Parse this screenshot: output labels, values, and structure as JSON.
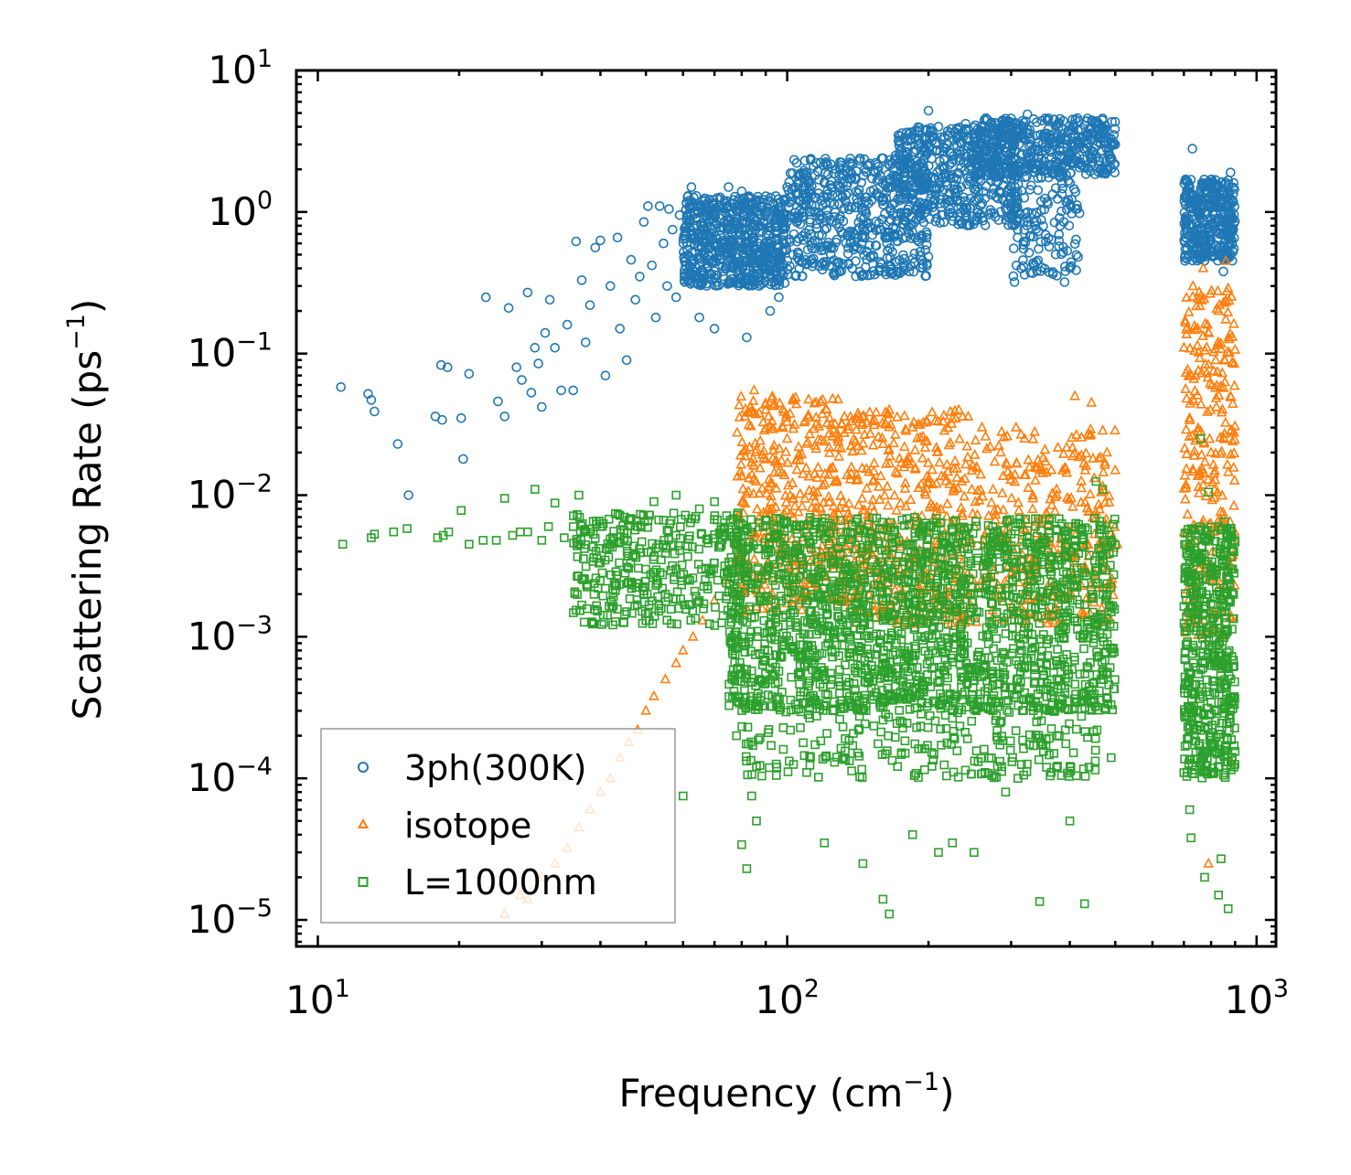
{
  "chart_data": {
    "type": "scatter",
    "title": "",
    "xlabel": {
      "base": "Frequency (cm",
      "exp": "−1",
      "tail": ")"
    },
    "ylabel": {
      "base": "Scattering Rate (ps",
      "exp": "−1",
      "tail": ")"
    },
    "xscale": "log",
    "yscale": "log",
    "xlim": [
      9,
      1100
    ],
    "ylim": [
      6.5e-06,
      10
    ],
    "xticks": [
      {
        "value": 10,
        "base": "10",
        "exp": "1"
      },
      {
        "value": 100,
        "base": "10",
        "exp": "2"
      },
      {
        "value": 1000,
        "base": "10",
        "exp": "3"
      }
    ],
    "yticks": [
      {
        "value": 1e-05,
        "base": "10",
        "exp": "−5"
      },
      {
        "value": 0.0001,
        "base": "10",
        "exp": "−4"
      },
      {
        "value": 0.001,
        "base": "10",
        "exp": "−3"
      },
      {
        "value": 0.01,
        "base": "10",
        "exp": "−2"
      },
      {
        "value": 0.1,
        "base": "10",
        "exp": "−1"
      },
      {
        "value": 1,
        "base": "10",
        "exp": "0"
      },
      {
        "value": 10,
        "base": "10",
        "exp": "1"
      }
    ],
    "legend": {
      "placement": "lower-left"
    },
    "series": [
      {
        "name": "3ph(300K)",
        "marker": "circle",
        "color": "#1f77b4",
        "points": [
          [
            11.2,
            0.058
          ],
          [
            12.8,
            0.052
          ],
          [
            13.0,
            0.047
          ],
          [
            13.2,
            0.039
          ],
          [
            14.8,
            0.023
          ],
          [
            15.6,
            0.01
          ],
          [
            17.8,
            0.036
          ],
          [
            18.4,
            0.034
          ],
          [
            18.3,
            0.083
          ],
          [
            18.9,
            0.08
          ],
          [
            20.2,
            0.035
          ],
          [
            20.4,
            0.018
          ],
          [
            21.0,
            0.072
          ],
          [
            22.8,
            0.25
          ],
          [
            24.2,
            0.046
          ],
          [
            25.0,
            0.036
          ],
          [
            25.5,
            0.21
          ],
          [
            26.5,
            0.08
          ],
          [
            27.2,
            0.065
          ],
          [
            28.0,
            0.27
          ],
          [
            28.5,
            0.053
          ],
          [
            29.0,
            0.11
          ],
          [
            29.5,
            0.085
          ],
          [
            30.0,
            0.042
          ],
          [
            30.5,
            0.14
          ],
          [
            31.2,
            0.24
          ],
          [
            32.0,
            0.11
          ],
          [
            33.0,
            0.055
          ],
          [
            34.0,
            0.16
          ],
          [
            35.0,
            0.055
          ],
          [
            35.5,
            0.62
          ],
          [
            36.5,
            0.33
          ],
          [
            37.2,
            0.12
          ],
          [
            38.0,
            0.22
          ],
          [
            39.0,
            0.56
          ],
          [
            40.0,
            0.63
          ],
          [
            41.0,
            0.07
          ],
          [
            42.0,
            0.3
          ],
          [
            43.5,
            0.66
          ],
          [
            44.0,
            0.15
          ],
          [
            45.5,
            0.09
          ],
          [
            46.5,
            0.46
          ],
          [
            47.5,
            0.24
          ],
          [
            48.5,
            0.35
          ],
          [
            49.5,
            0.85
          ],
          [
            50.5,
            1.1
          ],
          [
            51.5,
            0.42
          ],
          [
            52.5,
            0.18
          ],
          [
            53.5,
            1.1
          ],
          [
            54.5,
            0.6
          ],
          [
            55.5,
            0.3
          ],
          [
            56.0,
            1.05
          ],
          [
            57.0,
            0.75
          ],
          [
            58.0,
            0.25
          ],
          [
            59.0,
            0.95
          ],
          [
            60.5,
            0.45
          ],
          [
            61.5,
            1.3
          ],
          [
            62.5,
            1.5
          ],
          [
            64.0,
            1.3
          ],
          [
            65.0,
            0.18
          ],
          [
            66.0,
            1.2
          ],
          [
            68.0,
            0.85
          ],
          [
            70.0,
            0.15
          ],
          [
            72.0,
            0.9
          ],
          [
            75.0,
            1.5
          ],
          [
            78.0,
            0.5
          ],
          [
            80.0,
            1.4
          ],
          [
            82.0,
            0.13
          ],
          [
            85.0,
            0.65
          ],
          [
            88.0,
            1.1
          ],
          [
            92.0,
            0.2
          ],
          [
            96.0,
            0.25
          ],
          [
            100.0,
            1.5
          ],
          [
            105.0,
            0.9
          ],
          [
            110.0,
            1.9
          ],
          [
            115.0,
            1.0
          ],
          [
            120.0,
            1.6
          ],
          [
            128.0,
            1.3
          ],
          [
            135.0,
            1.1
          ],
          [
            140.0,
            1.7
          ],
          [
            150.0,
            2.2
          ],
          [
            160.0,
            2.4
          ],
          [
            170.0,
            2.5
          ],
          [
            180.0,
            2.9
          ],
          [
            190.0,
            3.2
          ],
          [
            200.0,
            5.2
          ],
          [
            210.0,
            4.0
          ],
          [
            220.0,
            3.5
          ],
          [
            230.0,
            3.9
          ],
          [
            240.0,
            4.2
          ],
          [
            250.0,
            3.6
          ],
          [
            265.0,
            4.6
          ],
          [
            280.0,
            4.1
          ],
          [
            295.0,
            4.4
          ],
          [
            305.0,
            0.32
          ],
          [
            310.0,
            3.8
          ],
          [
            325.0,
            4.9
          ],
          [
            340.0,
            4.3
          ],
          [
            355.0,
            2.9
          ],
          [
            370.0,
            3.1
          ],
          [
            390.0,
            0.32
          ],
          [
            405.0,
            3.8
          ],
          [
            430.0,
            4.1
          ],
          [
            460.0,
            3.4
          ],
          [
            490.0,
            3.1
          ],
          [
            500.0,
            3.0
          ],
          [
            720.0,
            1.5
          ],
          [
            730.0,
            2.8
          ],
          [
            740.0,
            0.5
          ],
          [
            760.0,
            1.0
          ],
          [
            790.0,
            0.6
          ],
          [
            820.0,
            1.2
          ],
          [
            850.0,
            0.38
          ],
          [
            880.0,
            1.9
          ],
          [
            895.0,
            0.55
          ]
        ],
        "clusters": [
          {
            "x": [
              60,
              100
            ],
            "y": [
              0.3,
              1.3
            ],
            "n": 650
          },
          {
            "x": [
              100,
              200
            ],
            "y": [
              0.35,
              2.4
            ],
            "n": 550
          },
          {
            "x": [
              170,
              310
            ],
            "y": [
              0.8,
              4.0
            ],
            "n": 450
          },
          {
            "x": [
              250,
              500
            ],
            "y": [
              1.8,
              4.6
            ],
            "n": 450
          },
          {
            "x": [
              300,
              420
            ],
            "y": [
              0.35,
              2.5
            ],
            "n": 150
          },
          {
            "x": [
              700,
              900
            ],
            "y": [
              0.45,
              1.7
            ],
            "n": 350
          }
        ]
      },
      {
        "name": "isotope",
        "marker": "triangle",
        "color": "#ff7f0e",
        "points": [
          [
            25.0,
            1.1e-05
          ],
          [
            27.0,
            1.5e-05
          ],
          [
            28.0,
            1.4e-05
          ],
          [
            30.0,
            2e-05
          ],
          [
            32.0,
            2.5e-05
          ],
          [
            34.0,
            3.2e-05
          ],
          [
            36.0,
            4.5e-05
          ],
          [
            38.0,
            6e-05
          ],
          [
            40.0,
            8e-05
          ],
          [
            42.0,
            0.0001
          ],
          [
            44.0,
            0.00014
          ],
          [
            46.0,
            0.00018
          ],
          [
            48.0,
            0.00022
          ],
          [
            50.0,
            0.0003
          ],
          [
            52.0,
            0.00038
          ],
          [
            55.0,
            0.0005
          ],
          [
            58.0,
            0.00065
          ],
          [
            60.0,
            0.0008
          ],
          [
            63.0,
            0.001
          ],
          [
            66.0,
            0.0013
          ],
          [
            70.0,
            0.0018
          ],
          [
            74.0,
            0.0025
          ],
          [
            78.0,
            0.0035
          ],
          [
            85.0,
            0.055
          ],
          [
            90.0,
            0.04
          ],
          [
            100.0,
            0.025
          ],
          [
            110.0,
            0.023
          ],
          [
            128.0,
            0.025
          ],
          [
            142.0,
            0.036
          ],
          [
            165.0,
            0.04
          ],
          [
            185.0,
            0.03
          ],
          [
            215.0,
            0.033
          ],
          [
            232.0,
            0.04
          ],
          [
            260.0,
            0.03
          ],
          [
            285.0,
            0.02
          ],
          [
            345.0,
            0.015
          ],
          [
            375.0,
            0.011
          ],
          [
            410.0,
            0.05
          ],
          [
            445.0,
            0.045
          ],
          [
            480.0,
            0.02
          ],
          [
            500.0,
            0.015
          ],
          [
            505.0,
            0.0045
          ],
          [
            720.0,
            0.035
          ],
          [
            770.0,
            0.4
          ],
          [
            800.0,
            0.02
          ],
          [
            830.0,
            0.2
          ],
          [
            860.0,
            0.45
          ],
          [
            880.0,
            0.05
          ],
          [
            885.0,
            0.00013
          ],
          [
            790.0,
            2.5e-05
          ]
        ],
        "clusters": [
          {
            "x": [
              78,
              130
            ],
            "y": [
              0.0015,
              0.05
            ],
            "n": 380
          },
          {
            "x": [
              130,
              250
            ],
            "y": [
              0.0012,
              0.04
            ],
            "n": 420
          },
          {
            "x": [
              250,
              500
            ],
            "y": [
              0.0012,
              0.03
            ],
            "n": 320
          },
          {
            "x": [
              700,
              900
            ],
            "y": [
              0.001,
              0.3
            ],
            "n": 260
          }
        ]
      },
      {
        "name": "L=1000nm",
        "marker": "square",
        "color": "#2ca02c",
        "points": [
          [
            11.3,
            0.0045
          ],
          [
            13.0,
            0.005
          ],
          [
            13.2,
            0.0053
          ],
          [
            14.5,
            0.0055
          ],
          [
            15.5,
            0.0058
          ],
          [
            18.0,
            0.005
          ],
          [
            18.5,
            0.0052
          ],
          [
            19.0,
            0.0055
          ],
          [
            20.2,
            0.0078
          ],
          [
            21.0,
            0.0045
          ],
          [
            22.5,
            0.0048
          ],
          [
            24.0,
            0.0048
          ],
          [
            25.0,
            0.0095
          ],
          [
            26.0,
            0.0052
          ],
          [
            27.0,
            0.0055
          ],
          [
            28.0,
            0.0055
          ],
          [
            29.0,
            0.011
          ],
          [
            30.0,
            0.0048
          ],
          [
            31.0,
            0.006
          ],
          [
            32.0,
            0.0088
          ],
          [
            33.5,
            0.005
          ],
          [
            35.0,
            0.006
          ],
          [
            36.0,
            0.01
          ],
          [
            37.0,
            0.0042
          ],
          [
            38.0,
            0.0055
          ],
          [
            40.0,
            0.006
          ],
          [
            42.0,
            0.0045
          ],
          [
            45.0,
            0.007
          ],
          [
            48.0,
            0.006
          ],
          [
            50.0,
            0.003
          ],
          [
            52.0,
            0.009
          ],
          [
            55.0,
            0.002
          ],
          [
            58.0,
            0.01
          ],
          [
            60.0,
            7.5e-05
          ],
          [
            62.0,
            0.0025
          ],
          [
            65.0,
            0.008
          ],
          [
            68.0,
            0.003
          ],
          [
            70.0,
            0.009
          ],
          [
            78.0,
            0.0002
          ],
          [
            80.0,
            3.4e-05
          ],
          [
            82.0,
            2.3e-05
          ],
          [
            84.0,
            7.5e-05
          ],
          [
            86.0,
            5e-05
          ],
          [
            95.0,
            0.00012
          ],
          [
            110.0,
            0.00011
          ],
          [
            120.0,
            3.5e-05
          ],
          [
            132.0,
            0.00014
          ],
          [
            145.0,
            2.5e-05
          ],
          [
            160.0,
            1.4e-05
          ],
          [
            165.0,
            1.1e-05
          ],
          [
            185.0,
            4e-05
          ],
          [
            210.0,
            3e-05
          ],
          [
            225.0,
            3.5e-05
          ],
          [
            250.0,
            3e-05
          ],
          [
            292.0,
            8e-05
          ],
          [
            310.0,
            0.0001
          ],
          [
            345.0,
            1.35e-05
          ],
          [
            370.0,
            0.00015
          ],
          [
            400.0,
            5e-05
          ],
          [
            430.0,
            1.3e-05
          ],
          [
            455.0,
            0.0125
          ],
          [
            470.0,
            0.011
          ],
          [
            490.0,
            0.00014
          ],
          [
            720.0,
            6e-05
          ],
          [
            725.0,
            3.8e-05
          ],
          [
            760.0,
            0.025
          ],
          [
            775.0,
            2e-05
          ],
          [
            790.0,
            0.0105
          ],
          [
            830.0,
            1.5e-05
          ],
          [
            840.0,
            2.7e-05
          ],
          [
            855.0,
            0.0065
          ],
          [
            870.0,
            1.2e-05
          ],
          [
            895.0,
            0.00012
          ]
        ],
        "clusters": [
          {
            "x": [
              35,
              80
            ],
            "y": [
              0.0012,
              0.0075
            ],
            "n": 350
          },
          {
            "x": [
              75,
              500
            ],
            "y": [
              0.0003,
              0.007
            ],
            "n": 1900
          },
          {
            "x": [
              80,
              460
            ],
            "y": [
              0.0001,
              0.0004
            ],
            "n": 300
          },
          {
            "x": [
              700,
              900
            ],
            "y": [
              0.0001,
              0.006
            ],
            "n": 500
          }
        ]
      }
    ]
  }
}
